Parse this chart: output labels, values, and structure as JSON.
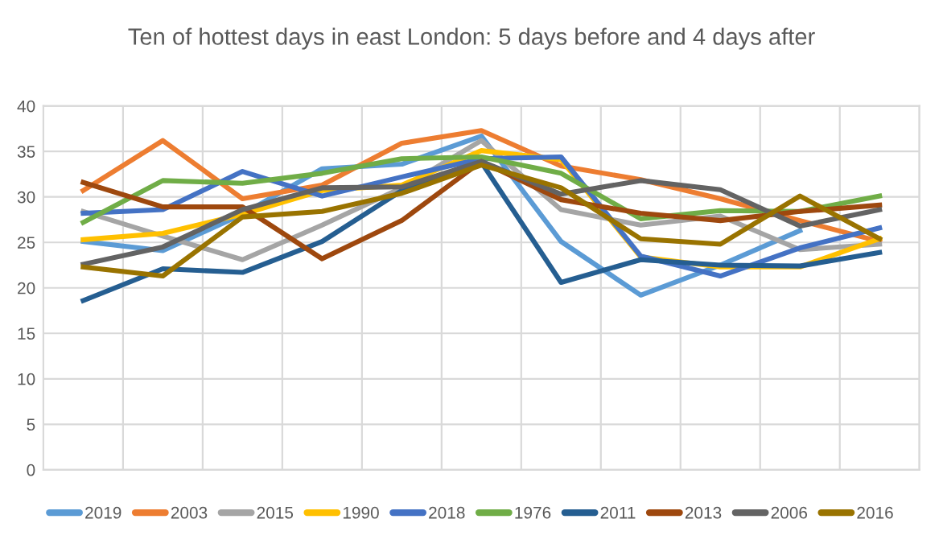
{
  "chart_data": {
    "type": "line",
    "title": "Ten of hottest days in east London: 5 days before and 4 days after",
    "categories": [
      null,
      null,
      null,
      null,
      null,
      null,
      null,
      null,
      null,
      null,
      null
    ],
    "series": [
      {
        "name": "2019",
        "color": "#5b9bd5",
        "values": [
          25.1,
          24.1,
          28.1,
          33.1,
          33.6,
          36.7,
          25.1,
          19.2,
          22.5,
          26.3,
          null
        ]
      },
      {
        "name": "2003",
        "color": "#ed7d31",
        "values": [
          30.7,
          36.2,
          29.8,
          31.3,
          35.9,
          37.3,
          33.4,
          31.9,
          29.8,
          27.4,
          25.1
        ]
      },
      {
        "name": "2015",
        "color": "#a5a5a5",
        "values": [
          28.4,
          25.7,
          23.1,
          26.9,
          31.0,
          36.2,
          28.6,
          26.9,
          27.9,
          24.2,
          24.8
        ]
      },
      {
        "name": "1990",
        "color": "#ffc000",
        "values": [
          25.3,
          26.0,
          28.1,
          30.7,
          31.3,
          35.1,
          34.1,
          23.4,
          22.3,
          22.3,
          25.4
        ]
      },
      {
        "name": "2018",
        "color": "#4472c4",
        "values": [
          28.2,
          28.6,
          32.8,
          30.1,
          32.2,
          34.2,
          34.4,
          23.5,
          21.3,
          24.4,
          26.6
        ]
      },
      {
        "name": "1976",
        "color": "#70ad47",
        "values": [
          27.2,
          31.8,
          31.5,
          32.6,
          34.2,
          34.4,
          32.6,
          27.6,
          28.5,
          28.4,
          30.1
        ]
      },
      {
        "name": "2011",
        "color": "#255e91",
        "values": [
          18.6,
          22.1,
          21.7,
          25.1,
          30.7,
          33.8,
          20.6,
          23.1,
          22.5,
          22.4,
          23.9
        ]
      },
      {
        "name": "2013",
        "color": "#9e480e",
        "values": [
          31.6,
          28.9,
          28.9,
          23.2,
          27.4,
          33.9,
          29.7,
          28.2,
          27.4,
          28.4,
          29.1
        ]
      },
      {
        "name": "2006",
        "color": "#636363",
        "values": [
          22.6,
          24.5,
          28.6,
          31.0,
          31.1,
          33.9,
          30.3,
          31.8,
          30.8,
          26.8,
          28.6
        ]
      },
      {
        "name": "2016",
        "color": "#997300",
        "values": [
          22.3,
          21.3,
          27.8,
          28.4,
          30.4,
          33.5,
          31.0,
          25.4,
          24.8,
          30.1,
          25.4
        ]
      }
    ],
    "ylim": [
      0,
      40
    ],
    "yticks": [
      0,
      5,
      10,
      15,
      20,
      25,
      30,
      35,
      40
    ],
    "grid": true,
    "legend": "bottom",
    "tick_labels": "y",
    "marker": "none",
    "line_style": "solid"
  }
}
